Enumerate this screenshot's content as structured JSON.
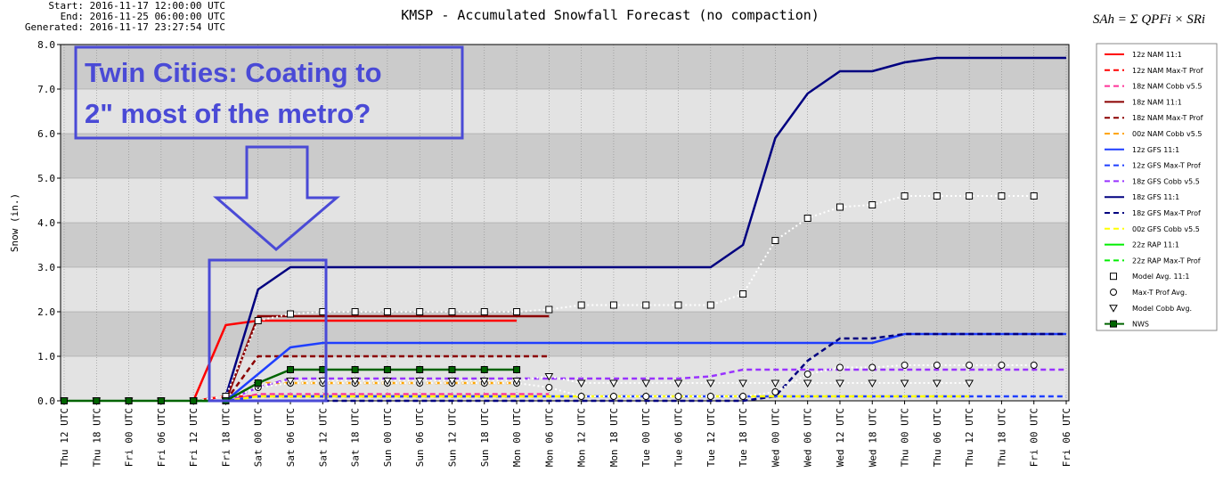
{
  "header": {
    "start": "Start: 2016-11-17 12:00:00 UTC",
    "end": "End: 2016-11-25 06:00:00 UTC",
    "generated": "Generated: 2016-11-17 23:27:54 UTC",
    "formula": "SAh = Σ QPFi × SRi"
  },
  "chart_data": {
    "type": "line",
    "title": "KMSP - Accumulated Snowfall Forecast (no compaction)",
    "y_label": "Snow (in.)",
    "annotation": [
      "Twin Cities: Coating to",
      "2\" most of the metro?"
    ],
    "categories": [
      "Thu 12 UTC",
      "Thu 18 UTC",
      "Fri 00 UTC",
      "Fri 06 UTC",
      "Fri 12 UTC",
      "Fri 18 UTC",
      "Sat 00 UTC",
      "Sat 06 UTC",
      "Sat 12 UTC",
      "Sat 18 UTC",
      "Sun 00 UTC",
      "Sun 06 UTC",
      "Sun 12 UTC",
      "Sun 18 UTC",
      "Mon 00 UTC",
      "Mon 06 UTC",
      "Mon 12 UTC",
      "Mon 18 UTC",
      "Tue 00 UTC",
      "Tue 06 UTC",
      "Tue 12 UTC",
      "Tue 18 UTC",
      "Wed 00 UTC",
      "Wed 06 UTC",
      "Wed 12 UTC",
      "Wed 18 UTC",
      "Thu 00 UTC",
      "Thu 06 UTC",
      "Thu 12 UTC",
      "Thu 18 UTC",
      "Fri 00 UTC",
      "Fri 06 UTC"
    ],
    "ylim": [
      0,
      8
    ],
    "yticks": [
      {
        "value": 0,
        "label": "0.0"
      },
      {
        "value": 1,
        "label": "1.0"
      },
      {
        "value": 2,
        "label": "2.0"
      },
      {
        "value": 3,
        "label": "3.0"
      },
      {
        "value": 4,
        "label": "4.0"
      },
      {
        "value": 5,
        "label": "5.0"
      },
      {
        "value": 6,
        "label": "6.0"
      },
      {
        "value": 7,
        "label": "7.0"
      },
      {
        "value": 8,
        "label": "8.0"
      }
    ],
    "grid": true,
    "legend": "right",
    "series": [
      {
        "name": "12z NAM 11:1",
        "color": "#ff0000",
        "style": "solid",
        "values": [
          null,
          null,
          null,
          null,
          0,
          1.7,
          1.8,
          1.8,
          1.8,
          1.8,
          1.8,
          1.8,
          1.8,
          1.8,
          1.8,
          null,
          null,
          null,
          null,
          null,
          null,
          null,
          null,
          null,
          null,
          null,
          null,
          null,
          null,
          null,
          null,
          null
        ]
      },
      {
        "name": "12z NAM Max-T Prof",
        "color": "#ff0000",
        "style": "dashed",
        "values": [
          null,
          null,
          null,
          null,
          0,
          0.1,
          0.1,
          0.1,
          0.1,
          0.1,
          0.1,
          0.1,
          0.1,
          0.1,
          0.1,
          null,
          null,
          null,
          null,
          null,
          null,
          null,
          null,
          null,
          null,
          null,
          null,
          null,
          null,
          null,
          null,
          null
        ]
      },
      {
        "name": "18z NAM Cobb v5.5",
        "color": "#ff3399",
        "style": "dashed",
        "values": [
          null,
          null,
          null,
          null,
          null,
          0,
          0.15,
          0.15,
          0.15,
          0.15,
          0.15,
          0.15,
          0.15,
          0.15,
          0.15,
          0.15,
          null,
          null,
          null,
          null,
          null,
          null,
          null,
          null,
          null,
          null,
          null,
          null,
          null,
          null,
          null,
          null
        ]
      },
      {
        "name": "18z NAM 11:1",
        "color": "#8b0000",
        "style": "solid",
        "values": [
          null,
          null,
          null,
          null,
          null,
          0,
          1.9,
          1.9,
          1.9,
          1.9,
          1.9,
          1.9,
          1.9,
          1.9,
          1.9,
          1.9,
          null,
          null,
          null,
          null,
          null,
          null,
          null,
          null,
          null,
          null,
          null,
          null,
          null,
          null,
          null,
          null
        ]
      },
      {
        "name": "18z NAM Max-T Prof",
        "color": "#8b0000",
        "style": "dashed",
        "values": [
          null,
          null,
          null,
          null,
          null,
          0,
          1.0,
          1.0,
          1.0,
          1.0,
          1.0,
          1.0,
          1.0,
          1.0,
          1.0,
          1.0,
          null,
          null,
          null,
          null,
          null,
          null,
          null,
          null,
          null,
          null,
          null,
          null,
          null,
          null,
          null,
          null
        ]
      },
      {
        "name": "00z NAM Cobb v5.5",
        "color": "#ffa500",
        "style": "dashed",
        "values": [
          null,
          null,
          null,
          null,
          null,
          0,
          0.4,
          0.4,
          0.4,
          0.4,
          0.4,
          0.4,
          0.4,
          0.4,
          0.4,
          null,
          null,
          null,
          null,
          null,
          null,
          null,
          null,
          null,
          null,
          null,
          null,
          null,
          null,
          null,
          null,
          null
        ]
      },
      {
        "name": "12z GFS 11:1",
        "color": "#1f3fff",
        "style": "solid",
        "values": [
          null,
          null,
          null,
          null,
          0,
          0,
          0.6,
          1.2,
          1.3,
          1.3,
          1.3,
          1.3,
          1.3,
          1.3,
          1.3,
          1.3,
          1.3,
          1.3,
          1.3,
          1.3,
          1.3,
          1.3,
          1.3,
          1.3,
          1.3,
          1.3,
          1.5,
          1.5,
          1.5,
          1.5,
          1.5,
          1.5
        ]
      },
      {
        "name": "12z GFS Max-T Prof",
        "color": "#1f3fff",
        "style": "dashed",
        "values": [
          null,
          null,
          null,
          null,
          0,
          0,
          0.1,
          0.1,
          0.1,
          0.1,
          0.1,
          0.1,
          0.1,
          0.1,
          0.1,
          0.1,
          0.1,
          0.1,
          0.1,
          0.1,
          0.1,
          0.1,
          0.1,
          0.1,
          0.1,
          0.1,
          0.1,
          0.1,
          0.1,
          0.1,
          0.1,
          0.1
        ]
      },
      {
        "name": "18z GFS Cobb v5.5",
        "color": "#9933ff",
        "style": "dashed",
        "values": [
          null,
          null,
          null,
          null,
          null,
          0,
          0.3,
          0.5,
          0.5,
          0.5,
          0.5,
          0.5,
          0.5,
          0.5,
          0.5,
          0.5,
          0.5,
          0.5,
          0.5,
          0.5,
          0.55,
          0.7,
          0.7,
          0.7,
          0.7,
          0.7,
          0.7,
          0.7,
          0.7,
          0.7,
          0.7,
          0.7
        ]
      },
      {
        "name": "18z GFS 11:1",
        "color": "#000080",
        "style": "solid",
        "values": [
          null,
          null,
          null,
          null,
          null,
          0.1,
          2.5,
          3.0,
          3.0,
          3.0,
          3.0,
          3.0,
          3.0,
          3.0,
          3.0,
          3.0,
          3.0,
          3.0,
          3.0,
          3.0,
          3.0,
          3.5,
          5.9,
          6.9,
          7.4,
          7.4,
          7.6,
          7.7,
          7.7,
          7.7,
          7.7,
          7.7
        ]
      },
      {
        "name": "18z GFS Max-T Prof",
        "color": "#000080",
        "style": "dashed",
        "values": [
          null,
          null,
          null,
          null,
          null,
          0,
          0,
          0,
          0,
          0,
          0,
          0,
          0,
          0,
          0,
          0,
          0,
          0,
          0,
          0,
          0,
          0,
          0.1,
          0.9,
          1.4,
          1.4,
          1.5,
          1.5,
          1.5,
          1.5,
          1.5,
          1.5
        ]
      },
      {
        "name": "00z GFS Cobb v5.5",
        "color": "#ffff00",
        "style": "dashed",
        "values": [
          null,
          null,
          null,
          null,
          null,
          0,
          0.1,
          0.1,
          0.1,
          0.1,
          0.1,
          0.1,
          0.1,
          0.1,
          0.1,
          0.1,
          0.1,
          0.1,
          0.1,
          0.1,
          0.1,
          0.1,
          0.1,
          0.1,
          0.1,
          0.1,
          0.1,
          0.1,
          0.1,
          null,
          null,
          null
        ]
      },
      {
        "name": "22z RAP 11:1",
        "color": "#00ee00",
        "style": "solid",
        "values": [
          null,
          null,
          null,
          null,
          0,
          0,
          null,
          null,
          null,
          null,
          null,
          null,
          null,
          null,
          null,
          null,
          null,
          null,
          null,
          null,
          null,
          null,
          null,
          null,
          null,
          null,
          null,
          null,
          null,
          null,
          null,
          null
        ]
      },
      {
        "name": "22z RAP Max-T Prof",
        "color": "#00ee00",
        "style": "dashed",
        "values": [
          null,
          null,
          null,
          null,
          0,
          0,
          null,
          null,
          null,
          null,
          null,
          null,
          null,
          null,
          null,
          null,
          null,
          null,
          null,
          null,
          null,
          null,
          null,
          null,
          null,
          null,
          null,
          null,
          null,
          null,
          null,
          null
        ]
      },
      {
        "name": "Model Avg. 11:1",
        "color": "#ffffff",
        "style": "solid",
        "marker": "square",
        "values": [
          0,
          0,
          0,
          0,
          0,
          0.1,
          1.8,
          1.95,
          2.0,
          2.0,
          2.0,
          2.0,
          2.0,
          2.0,
          2.0,
          2.05,
          2.15,
          2.15,
          2.15,
          2.15,
          2.15,
          2.4,
          3.6,
          4.1,
          4.35,
          4.4,
          4.6,
          4.6,
          4.6,
          4.6,
          4.6,
          null
        ]
      },
      {
        "name": "Max-T Prof Avg.",
        "color": "#ffffff",
        "style": "solid",
        "marker": "circle",
        "values": [
          0,
          0,
          0,
          0,
          0,
          0,
          0.3,
          0.4,
          0.4,
          0.4,
          0.4,
          0.4,
          0.4,
          0.4,
          0.4,
          0.3,
          0.1,
          0.1,
          0.1,
          0.1,
          0.1,
          0.1,
          0.2,
          0.6,
          0.75,
          0.75,
          0.8,
          0.8,
          0.8,
          0.8,
          0.8,
          null
        ]
      },
      {
        "name": "Model Cobb Avg.",
        "color": "#ffffff",
        "style": "solid",
        "marker": "triangle",
        "values": [
          0,
          0,
          0,
          0,
          0,
          0,
          0.35,
          0.45,
          0.45,
          0.45,
          0.45,
          0.45,
          0.45,
          0.45,
          0.45,
          0.55,
          0.4,
          0.4,
          0.4,
          0.4,
          0.4,
          0.4,
          0.4,
          0.4,
          0.4,
          0.4,
          0.4,
          0.4,
          0.4,
          null,
          null,
          null
        ]
      },
      {
        "name": "NWS",
        "color": "#006400",
        "style": "solid",
        "marker": "filled-square",
        "values": [
          0,
          0,
          0,
          0,
          0,
          0,
          0.4,
          0.7,
          0.7,
          0.7,
          0.7,
          0.7,
          0.7,
          0.7,
          0.7,
          null,
          null,
          null,
          null,
          null,
          null,
          null,
          null,
          null,
          null,
          null,
          null,
          null,
          null,
          null,
          null,
          null
        ]
      }
    ]
  }
}
